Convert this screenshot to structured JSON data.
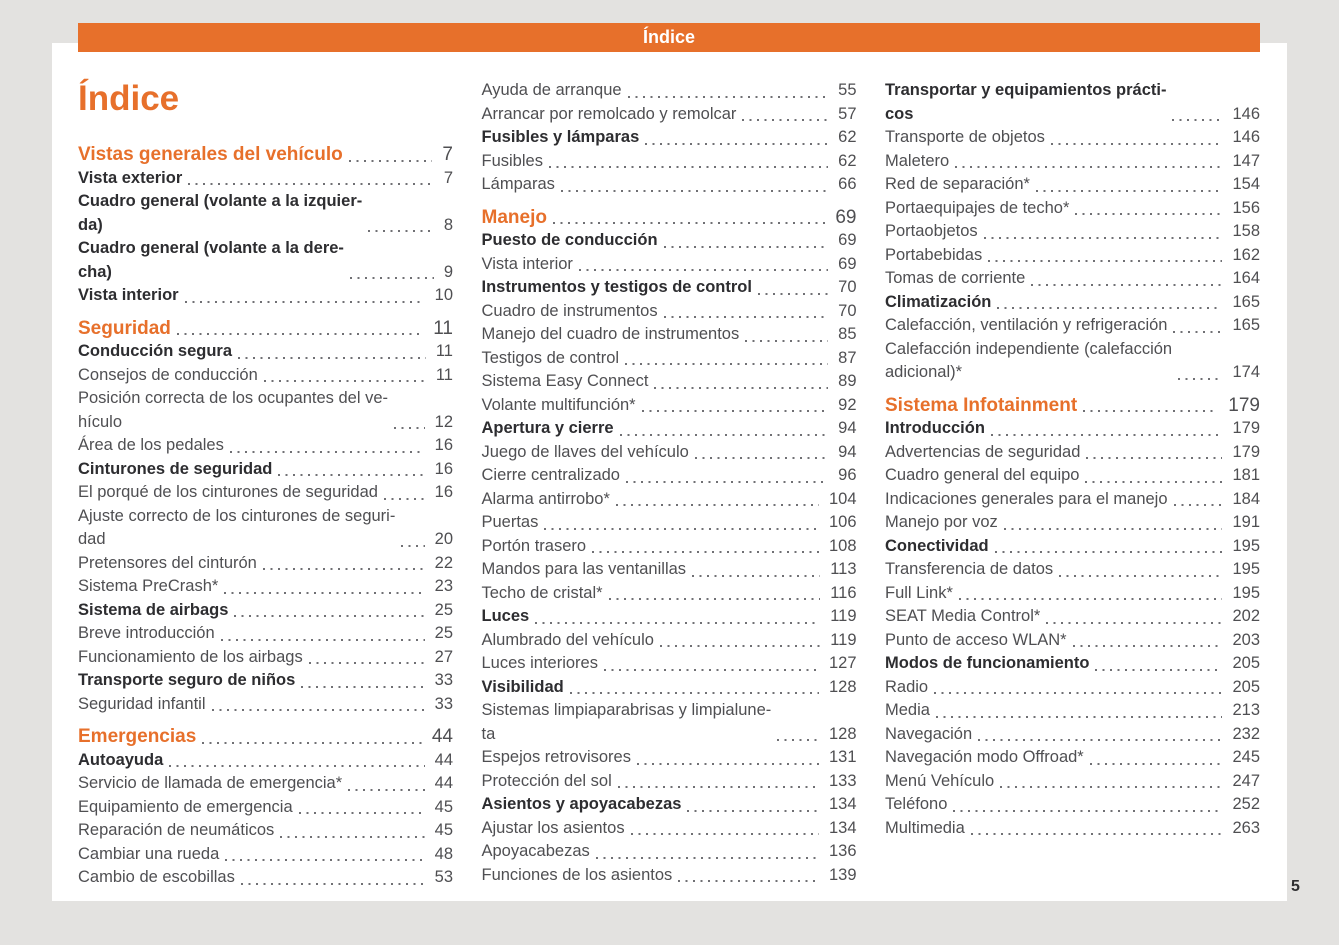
{
  "banner": {
    "title": "Índice"
  },
  "page": {
    "title": "Índice",
    "number": "5"
  },
  "colors": {
    "accent": "#e7702b",
    "text": "#4f4f52",
    "bold_text": "#2d2d30",
    "background": "#e3e2e0"
  },
  "toc": {
    "columns": [
      {
        "entries": [
          {
            "t": "Vistas generales del vehículo",
            "p": "7",
            "s": "chapter"
          },
          {
            "t": "Vista exterior",
            "p": "7",
            "s": "section"
          },
          {
            "t": "Cuadro general (volante a la izquier-\nda)",
            "p": "8",
            "s": "section"
          },
          {
            "t": "Cuadro general (volante a la dere-\ncha)",
            "p": "9",
            "s": "section"
          },
          {
            "t": "Vista interior",
            "p": "10",
            "s": "section"
          },
          {
            "t": "Seguridad",
            "p": "11",
            "s": "chapter"
          },
          {
            "t": "Conducción segura",
            "p": "11",
            "s": "section"
          },
          {
            "t": "Consejos de conducción",
            "p": "11",
            "s": "item"
          },
          {
            "t": "Posición correcta de los ocupantes del ve-\nhículo",
            "p": "12",
            "s": "item"
          },
          {
            "t": "Área de los pedales",
            "p": "16",
            "s": "item"
          },
          {
            "t": "Cinturones de seguridad",
            "p": "16",
            "s": "section"
          },
          {
            "t": "El porqué de los cinturones de seguridad",
            "p": "16",
            "s": "item"
          },
          {
            "t": "Ajuste correcto de los cinturones de seguri-\ndad",
            "p": "20",
            "s": "item"
          },
          {
            "t": "Pretensores del cinturón",
            "p": "22",
            "s": "item"
          },
          {
            "t": "Sistema PreCrash*",
            "p": "23",
            "s": "item"
          },
          {
            "t": "Sistema de airbags",
            "p": "25",
            "s": "section"
          },
          {
            "t": "Breve introducción",
            "p": "25",
            "s": "item"
          },
          {
            "t": "Funcionamiento de los airbags",
            "p": "27",
            "s": "item"
          },
          {
            "t": "Transporte seguro de niños",
            "p": "33",
            "s": "section"
          },
          {
            "t": "Seguridad infantil",
            "p": "33",
            "s": "item"
          },
          {
            "t": "Emergencias",
            "p": "44",
            "s": "chapter"
          },
          {
            "t": "Autoayuda",
            "p": "44",
            "s": "section"
          },
          {
            "t": "Servicio de llamada de emergencia*",
            "p": "44",
            "s": "item"
          },
          {
            "t": "Equipamiento de emergencia",
            "p": "45",
            "s": "item"
          },
          {
            "t": "Reparación de neumáticos",
            "p": "45",
            "s": "item"
          },
          {
            "t": "Cambiar una rueda",
            "p": "48",
            "s": "item"
          },
          {
            "t": "Cambio de escobillas",
            "p": "53",
            "s": "item"
          }
        ]
      },
      {
        "entries": [
          {
            "t": "Ayuda de arranque",
            "p": "55",
            "s": "item"
          },
          {
            "t": "Arrancar por remolcado y remolcar",
            "p": "57",
            "s": "item"
          },
          {
            "t": "Fusibles y lámparas",
            "p": "62",
            "s": "section"
          },
          {
            "t": "Fusibles",
            "p": "62",
            "s": "item"
          },
          {
            "t": "Lámparas",
            "p": "66",
            "s": "item"
          },
          {
            "t": "Manejo",
            "p": "69",
            "s": "chapter"
          },
          {
            "t": "Puesto de conducción",
            "p": "69",
            "s": "section"
          },
          {
            "t": "Vista interior",
            "p": "69",
            "s": "item"
          },
          {
            "t": "Instrumentos y testigos de control",
            "p": "70",
            "s": "section"
          },
          {
            "t": "Cuadro de instrumentos",
            "p": "70",
            "s": "item"
          },
          {
            "t": "Manejo del cuadro de instrumentos",
            "p": "85",
            "s": "item"
          },
          {
            "t": "Testigos de control",
            "p": "87",
            "s": "item"
          },
          {
            "t": "Sistema Easy Connect",
            "p": "89",
            "s": "item"
          },
          {
            "t": "Volante multifunción*",
            "p": "92",
            "s": "item"
          },
          {
            "t": "Apertura y cierre",
            "p": "94",
            "s": "section"
          },
          {
            "t": "Juego de llaves del vehículo",
            "p": "94",
            "s": "item"
          },
          {
            "t": "Cierre centralizado",
            "p": "96",
            "s": "item"
          },
          {
            "t": "Alarma antirrobo*",
            "p": "104",
            "s": "item"
          },
          {
            "t": "Puertas",
            "p": "106",
            "s": "item"
          },
          {
            "t": "Portón trasero",
            "p": "108",
            "s": "item"
          },
          {
            "t": "Mandos para las ventanillas",
            "p": "113",
            "s": "item"
          },
          {
            "t": "Techo de cristal*",
            "p": "116",
            "s": "item"
          },
          {
            "t": "Luces",
            "p": "119",
            "s": "section"
          },
          {
            "t": "Alumbrado del vehículo",
            "p": "119",
            "s": "item"
          },
          {
            "t": "Luces interiores",
            "p": "127",
            "s": "item"
          },
          {
            "t": "Visibilidad",
            "p": "128",
            "s": "section"
          },
          {
            "t": "Sistemas limpiaparabrisas y limpialune-\nta",
            "p": "128",
            "s": "item"
          },
          {
            "t": "Espejos retrovisores",
            "p": "131",
            "s": "item"
          },
          {
            "t": "Protección del sol",
            "p": "133",
            "s": "item"
          },
          {
            "t": "Asientos y apoyacabezas",
            "p": "134",
            "s": "section"
          },
          {
            "t": "Ajustar los asientos",
            "p": "134",
            "s": "item"
          },
          {
            "t": "Apoyacabezas",
            "p": "136",
            "s": "item"
          },
          {
            "t": "Funciones de los asientos",
            "p": "139",
            "s": "item"
          }
        ]
      },
      {
        "entries": [
          {
            "t": "Transportar y equipamientos prácti-\ncos",
            "p": "146",
            "s": "section"
          },
          {
            "t": "Transporte de objetos",
            "p": "146",
            "s": "item"
          },
          {
            "t": "Maletero",
            "p": "147",
            "s": "item"
          },
          {
            "t": "Red de separación*",
            "p": "154",
            "s": "item"
          },
          {
            "t": "Portaequipajes de techo*",
            "p": "156",
            "s": "item"
          },
          {
            "t": "Portaobjetos",
            "p": "158",
            "s": "item"
          },
          {
            "t": "Portabebidas",
            "p": "162",
            "s": "item"
          },
          {
            "t": "Tomas de corriente",
            "p": "164",
            "s": "item"
          },
          {
            "t": "Climatización",
            "p": "165",
            "s": "section"
          },
          {
            "t": "Calefacción, ventilación y refrigeración",
            "p": "165",
            "s": "item"
          },
          {
            "t": "Calefacción independiente (calefacción\nadicional)*",
            "p": "174",
            "s": "item"
          },
          {
            "t": "Sistema Infotainment",
            "p": "179",
            "s": "chapter"
          },
          {
            "t": "Introducción",
            "p": "179",
            "s": "section"
          },
          {
            "t": "Advertencias de seguridad",
            "p": "179",
            "s": "item"
          },
          {
            "t": "Cuadro general del equipo",
            "p": "181",
            "s": "item"
          },
          {
            "t": "Indicaciones generales para el manejo",
            "p": "184",
            "s": "item"
          },
          {
            "t": "Manejo por voz",
            "p": "191",
            "s": "item"
          },
          {
            "t": "Conectividad",
            "p": "195",
            "s": "section"
          },
          {
            "t": "Transferencia de datos",
            "p": "195",
            "s": "item"
          },
          {
            "t": "Full Link*",
            "p": "195",
            "s": "item"
          },
          {
            "t": "SEAT Media Control*",
            "p": "202",
            "s": "item"
          },
          {
            "t": "Punto de acceso WLAN*",
            "p": "203",
            "s": "item"
          },
          {
            "t": "Modos de funcionamiento",
            "p": "205",
            "s": "section"
          },
          {
            "t": "Radio",
            "p": "205",
            "s": "item"
          },
          {
            "t": "Media",
            "p": "213",
            "s": "item"
          },
          {
            "t": "Navegación",
            "p": "232",
            "s": "item"
          },
          {
            "t": "Navegación modo Offroad*",
            "p": "245",
            "s": "item"
          },
          {
            "t": "Menú Vehículo",
            "p": "247",
            "s": "item"
          },
          {
            "t": "Teléfono",
            "p": "252",
            "s": "item"
          },
          {
            "t": "Multimedia",
            "p": "263",
            "s": "item"
          }
        ]
      }
    ]
  }
}
